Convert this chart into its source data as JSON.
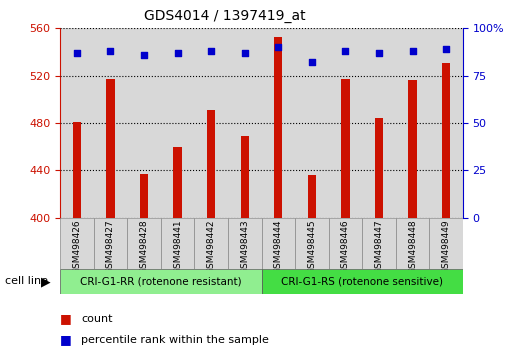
{
  "title": "GDS4014 / 1397419_at",
  "samples": [
    "GSM498426",
    "GSM498427",
    "GSM498428",
    "GSM498441",
    "GSM498442",
    "GSM498443",
    "GSM498444",
    "GSM498445",
    "GSM498446",
    "GSM498447",
    "GSM498448",
    "GSM498449"
  ],
  "counts": [
    481,
    517,
    437,
    460,
    491,
    469,
    553,
    436,
    517,
    484,
    516,
    531
  ],
  "percentile_ranks": [
    87,
    88,
    86,
    87,
    88,
    87,
    90,
    82,
    88,
    87,
    88,
    89
  ],
  "bar_color": "#CC1100",
  "dot_color": "#0000CC",
  "ylim_left": [
    400,
    560
  ],
  "ylim_right": [
    0,
    100
  ],
  "yticks_left": [
    400,
    440,
    480,
    520,
    560
  ],
  "yticks_right": [
    0,
    25,
    50,
    75,
    100
  ],
  "bar_width": 0.25,
  "background_color": "#ffffff",
  "plot_bg_color": "#ffffff",
  "group1_label": "CRI-G1-RR (rotenone resistant)",
  "group2_label": "CRI-G1-RS (rotenone sensitive)",
  "group1_color": "#90EE90",
  "group2_color": "#44DD44",
  "cell_line_label": "cell line",
  "legend_count_label": "count",
  "legend_percentile_label": "percentile rank within the sample",
  "n_group1": 6,
  "n_group2": 6,
  "col_bg_color": "#d8d8d8",
  "left_tick_color": "#CC1100",
  "right_tick_color": "#0000CC"
}
